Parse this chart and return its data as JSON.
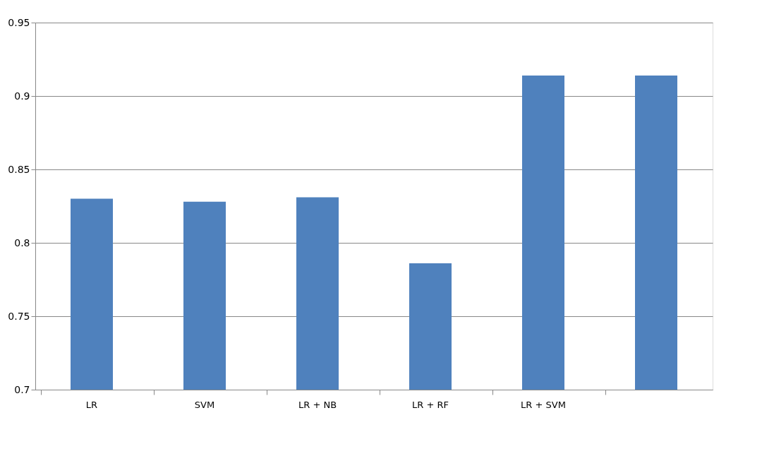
{
  "chart_data": {
    "type": "bar",
    "categories": [
      "LR",
      "SVM",
      "LR + NB",
      "LR + RF",
      "LR + SVM",
      null
    ],
    "values": [
      0.83,
      0.828,
      0.831,
      0.786,
      0.914,
      0.914
    ],
    "color": "#4f81bd",
    "ylim": [
      0.7,
      0.95
    ],
    "yticks": [
      0.7,
      0.75,
      0.8,
      0.85,
      0.9,
      0.95
    ],
    "grid": "y"
  }
}
